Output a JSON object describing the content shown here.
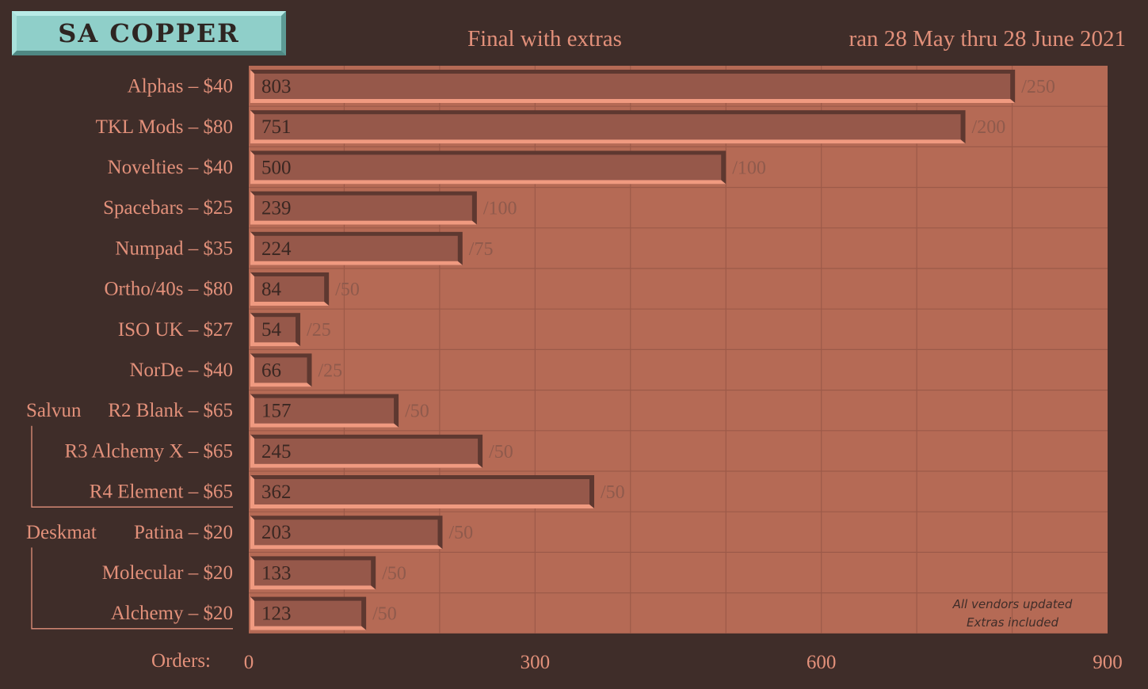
{
  "header": {
    "logo": "SA COPPER",
    "subtitle": "Final with extras",
    "date_range": "ran 28 May thru 28 June 2021"
  },
  "colors": {
    "background": "#3f2d29",
    "plot_bg": "#b56a55",
    "bar_fill": "#96584a",
    "bar_dark": "#5e3830",
    "bar_light": "#f09a80",
    "text": "#e2907a",
    "logo_bg": "#8fcfc9"
  },
  "chart_data": {
    "type": "bar",
    "orientation": "horizontal",
    "title": "Final with extras",
    "xlabel": "Orders:",
    "xlim": [
      0,
      900
    ],
    "x_ticks": [
      "0",
      "300",
      "600",
      "900"
    ],
    "grid": true,
    "categories": [
      "Alphas – $40",
      "TKL Mods – $80",
      "Novelties – $40",
      "Spacebars – $25",
      "Numpad – $35",
      "Ortho/40s – $80",
      "ISO UK – $27",
      "NorDe – $40",
      "R2 Blank – $65",
      "R3 Alchemy X – $65",
      "R4 Element – $65",
      "Patina – $20",
      "Molecular – $20",
      "Alchemy – $20"
    ],
    "values": [
      803,
      751,
      500,
      239,
      224,
      84,
      54,
      66,
      157,
      245,
      362,
      203,
      133,
      123
    ],
    "targets": [
      "/250",
      "/200",
      "/100",
      "/100",
      "/75",
      "/50",
      "/25",
      "/25",
      "/50",
      "/50",
      "/50",
      "/50",
      "/50",
      "/50"
    ],
    "groups": [
      {
        "label": "Salvun",
        "first": 8,
        "last": 10
      },
      {
        "label": "Deskmat",
        "first": 11,
        "last": 13
      }
    ],
    "annotation": [
      "All vendors updated",
      "Extras included"
    ]
  }
}
